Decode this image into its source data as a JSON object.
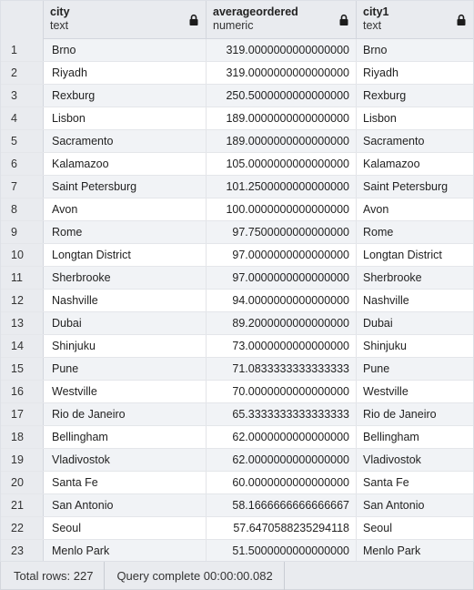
{
  "columns": [
    {
      "name": "city",
      "type": "text"
    },
    {
      "name": "averageordered",
      "type": "numeric"
    },
    {
      "name": "city1",
      "type": "text"
    }
  ],
  "rows": [
    {
      "n": "1",
      "city": "Brno",
      "avg": "319.0000000000000000",
      "city1": "Brno"
    },
    {
      "n": "2",
      "city": "Riyadh",
      "avg": "319.0000000000000000",
      "city1": "Riyadh"
    },
    {
      "n": "3",
      "city": "Rexburg",
      "avg": "250.5000000000000000",
      "city1": "Rexburg"
    },
    {
      "n": "4",
      "city": "Lisbon",
      "avg": "189.0000000000000000",
      "city1": "Lisbon"
    },
    {
      "n": "5",
      "city": "Sacramento",
      "avg": "189.0000000000000000",
      "city1": "Sacramento"
    },
    {
      "n": "6",
      "city": "Kalamazoo",
      "avg": "105.0000000000000000",
      "city1": "Kalamazoo"
    },
    {
      "n": "7",
      "city": "Saint Petersburg",
      "avg": "101.2500000000000000",
      "city1": "Saint Petersburg"
    },
    {
      "n": "8",
      "city": "Avon",
      "avg": "100.0000000000000000",
      "city1": "Avon"
    },
    {
      "n": "9",
      "city": "Rome",
      "avg": "97.7500000000000000",
      "city1": "Rome"
    },
    {
      "n": "10",
      "city": "Longtan District",
      "avg": "97.0000000000000000",
      "city1": "Longtan District"
    },
    {
      "n": "11",
      "city": "Sherbrooke",
      "avg": "97.0000000000000000",
      "city1": "Sherbrooke"
    },
    {
      "n": "12",
      "city": "Nashville",
      "avg": "94.0000000000000000",
      "city1": "Nashville"
    },
    {
      "n": "13",
      "city": "Dubai",
      "avg": "89.2000000000000000",
      "city1": "Dubai"
    },
    {
      "n": "14",
      "city": "Shinjuku",
      "avg": "73.0000000000000000",
      "city1": "Shinjuku"
    },
    {
      "n": "15",
      "city": "Pune",
      "avg": "71.0833333333333333",
      "city1": "Pune"
    },
    {
      "n": "16",
      "city": "Westville",
      "avg": "70.0000000000000000",
      "city1": "Westville"
    },
    {
      "n": "17",
      "city": "Rio de Janeiro",
      "avg": "65.3333333333333333",
      "city1": "Rio de Janeiro"
    },
    {
      "n": "18",
      "city": "Bellingham",
      "avg": "62.0000000000000000",
      "city1": "Bellingham"
    },
    {
      "n": "19",
      "city": "Vladivostok",
      "avg": "62.0000000000000000",
      "city1": "Vladivostok"
    },
    {
      "n": "20",
      "city": "Santa Fe",
      "avg": "60.0000000000000000",
      "city1": "Santa Fe"
    },
    {
      "n": "21",
      "city": "San Antonio",
      "avg": "58.1666666666666667",
      "city1": "San Antonio"
    },
    {
      "n": "22",
      "city": "Seoul",
      "avg": "57.6470588235294118",
      "city1": "Seoul"
    },
    {
      "n": "23",
      "city": "Menlo Park",
      "avg": "51.5000000000000000",
      "city1": "Menlo Park"
    }
  ],
  "status": {
    "total_rows": "Total rows: 227",
    "query": "Query complete 00:00:00.082"
  },
  "icons": {
    "lock": "lock-icon"
  },
  "colors": {
    "header_bg": "#e9ebef",
    "row_alt": "#f1f3f6",
    "grid_line": "#e2e4e8"
  }
}
